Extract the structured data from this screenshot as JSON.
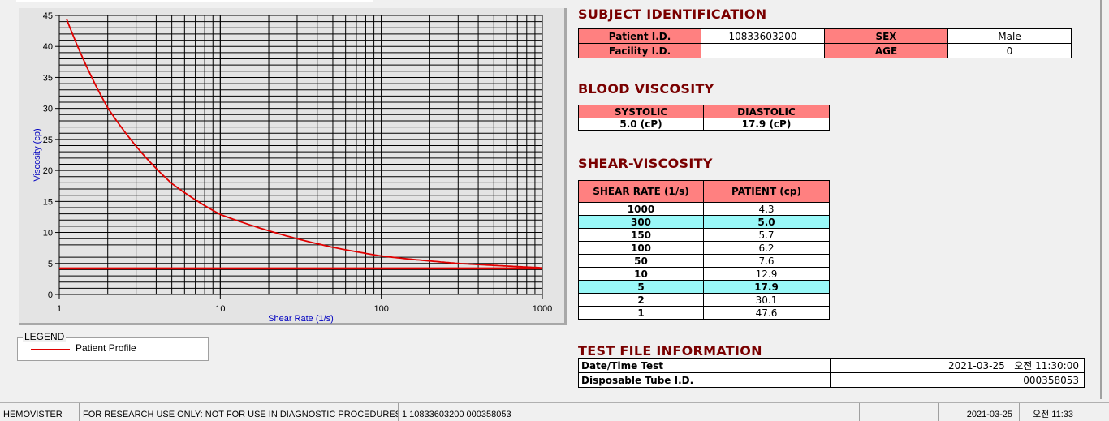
{
  "chart_data": {
    "type": "line",
    "xlabel": "Shear Rate (1/s)",
    "ylabel": "Viscosity (cp)",
    "xscale": "log",
    "xlim": [
      1,
      1000
    ],
    "ylim": [
      0,
      45
    ],
    "xticks": [
      "1",
      "10",
      "100",
      "1000"
    ],
    "yticks": [
      "0",
      "5",
      "10",
      "15",
      "20",
      "25",
      "30",
      "35",
      "40",
      "45"
    ],
    "grid": true,
    "legend_position": "bottom-left",
    "series": [
      {
        "name": "Patient Profile",
        "color": "#e00000",
        "x": [
          1,
          2,
          5,
          10,
          50,
          100,
          150,
          300,
          1000
        ],
        "y": [
          47.6,
          30.1,
          17.9,
          12.9,
          7.6,
          6.2,
          5.7,
          5.0,
          4.3
        ]
      },
      {
        "color": "#e00000",
        "x": [
          1,
          1000
        ],
        "y": [
          4.2,
          4.2
        ]
      }
    ]
  },
  "legend": {
    "title": "LEGEND",
    "items": [
      {
        "label": "Patient Profile",
        "color": "#e00000"
      }
    ]
  },
  "subject": {
    "title": "SUBJECT IDENTIFICATION",
    "patient_id_label": "Patient I.D.",
    "patient_id": "10833603200",
    "sex_label": "SEX",
    "sex": "Male",
    "facility_label": "Facility I.D.",
    "facility": "",
    "age_label": "AGE",
    "age": "0"
  },
  "blood": {
    "title": "BLOOD VISCOSITY",
    "systolic_label": "SYSTOLIC",
    "diastolic_label": "DIASTOLIC",
    "systolic": "5.0 (cP)",
    "diastolic": "17.9 (cP)"
  },
  "shear": {
    "title": "SHEAR-VISCOSITY",
    "col1": "SHEAR RATE (1/s)",
    "col2": "PATIENT (cp)",
    "rows": [
      [
        "1000",
        "4.3",
        false
      ],
      [
        "300",
        "5.0",
        true
      ],
      [
        "150",
        "5.7",
        false
      ],
      [
        "100",
        "6.2",
        false
      ],
      [
        "50",
        "7.6",
        false
      ],
      [
        "10",
        "12.9",
        false
      ],
      [
        "5",
        "17.9",
        true
      ],
      [
        "2",
        "30.1",
        false
      ],
      [
        "1",
        "47.6",
        false
      ]
    ]
  },
  "testfile": {
    "title": "TEST FILE INFORMATION",
    "date_label": "Date/Time Test",
    "date": "2021-03-25   오전 11:30:00",
    "tube_label": "Disposable Tube I.D.",
    "tube": "000358053"
  },
  "status": {
    "app": "HEMOVISTER",
    "notice": "FOR RESEARCH USE ONLY: NOT FOR USE IN DIAGNOSTIC PROCEDURES",
    "record": "1  10833603200  000358053",
    "blank": "",
    "date": "2021-03-25",
    "time": "오전 11:33"
  },
  "colors": {
    "header_pink": "#ff8080",
    "highlight_cyan": "#99f8f8",
    "title_red": "#7a0000",
    "curve": "#e00000"
  }
}
